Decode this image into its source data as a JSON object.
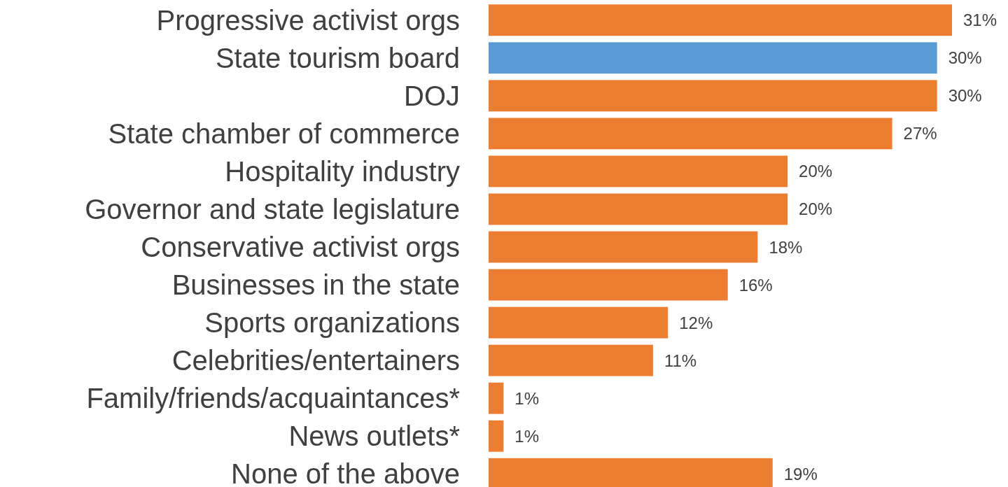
{
  "chart_data": {
    "type": "bar",
    "orientation": "horizontal",
    "categories": [
      "Progressive activist orgs",
      "State tourism board",
      "DOJ",
      "State chamber of commerce",
      "Hospitality industry",
      "Governor and state legislature",
      "Conservative activist orgs",
      "Businesses in the state",
      "Sports organizations",
      "Celebrities/entertainers",
      "Family/friends/acquaintances*",
      "News outlets*",
      "None of the above"
    ],
    "values": [
      31,
      30,
      30,
      27,
      20,
      20,
      18,
      16,
      12,
      11,
      1,
      1,
      19
    ],
    "colors": [
      "#ed7d31",
      "#5b9bd5",
      "#ed7d31",
      "#ed7d31",
      "#ed7d31",
      "#ed7d31",
      "#ed7d31",
      "#ed7d31",
      "#ed7d31",
      "#ed7d31",
      "#ed7d31",
      "#ed7d31",
      "#ed7d31"
    ],
    "value_labels": [
      "31%",
      "30%",
      "30%",
      "27%",
      "20%",
      "20%",
      "18%",
      "16%",
      "12%",
      "11%",
      "1%",
      "1%",
      "19%"
    ]
  }
}
